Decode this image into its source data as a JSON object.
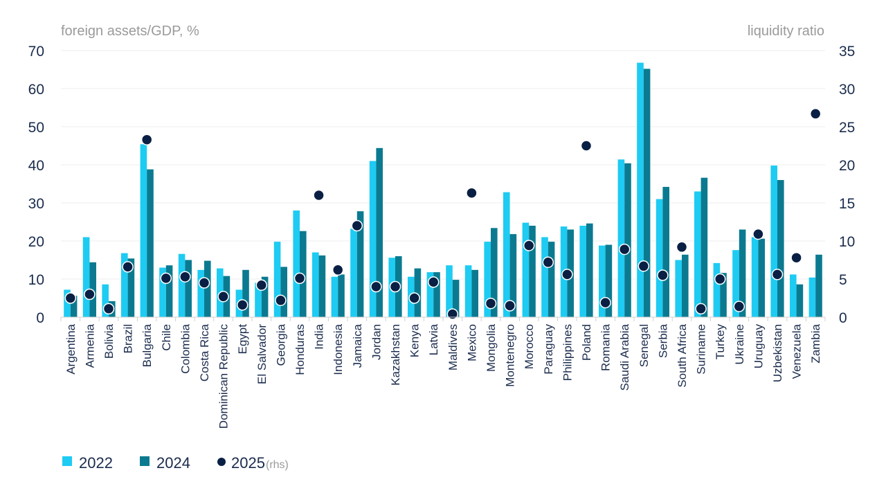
{
  "chart_data": {
    "type": "bar",
    "left_axis_title": "foreign assets/GDP, %",
    "right_axis_title": "liquidity ratio",
    "ylim_left": [
      0,
      70
    ],
    "ylim_right": [
      0,
      35
    ],
    "yticks_left": [
      "0",
      "10",
      "20",
      "30",
      "40",
      "50",
      "60",
      "70"
    ],
    "yticks_right": [
      "0",
      "5",
      "10",
      "15",
      "20",
      "25",
      "30",
      "35"
    ],
    "categories": [
      "Argentina",
      "Armenia",
      "Bolivia",
      "Brazil",
      "Bulgaria",
      "Chile",
      "Colombia",
      "Costa Rica",
      "Dominican Republic",
      "Egypt",
      "El Salvador",
      "Georgia",
      "Honduras",
      "India",
      "Indonesia",
      "Jamaica",
      "Jordan",
      "Kazakhstan",
      "Kenya",
      "Latvia",
      "Maldives",
      "Mexico",
      "Mongolia",
      "Montenegro",
      "Morocco",
      "Paraguay",
      "Philippines",
      "Poland",
      "Romania",
      "Saudi Arabia",
      "Senegal",
      "Serbia",
      "South Africa",
      "Suriname",
      "Turkey",
      "Ukraine",
      "Uruguay",
      "Uzbekistan",
      "Venezuela",
      "Zambia"
    ],
    "series": [
      {
        "name": "2022",
        "type": "bar",
        "axis": "left",
        "color": "#1ecbf2",
        "values": [
          7.2,
          21,
          8.6,
          16.8,
          45.4,
          13,
          16.6,
          12.4,
          12.8,
          7.2,
          9,
          19.8,
          28,
          17,
          10.6,
          23.2,
          41,
          15.6,
          10.6,
          11.8,
          13.6,
          13.6,
          19.8,
          32.8,
          24.8,
          21,
          23.8,
          24,
          18.8,
          41.4,
          66.8,
          31,
          15,
          33,
          14.2,
          17.6,
          21,
          39.8,
          11.2,
          10.4
        ]
      },
      {
        "name": "2024",
        "type": "bar",
        "axis": "left",
        "color": "#0b7a90",
        "values": [
          5.6,
          14.4,
          4.2,
          15.4,
          38.8,
          13.6,
          15,
          14.8,
          10.8,
          12.4,
          10.6,
          13.2,
          22.6,
          16.2,
          11.2,
          27.8,
          44.4,
          16,
          12.8,
          11.8,
          9.8,
          12.4,
          23.4,
          21.8,
          24,
          19.8,
          23,
          24.6,
          19,
          40.4,
          65.2,
          34.2,
          16.4,
          36.6,
          11.6,
          23,
          20.6,
          36,
          8.6,
          16.4
        ]
      },
      {
        "name": "2025",
        "note": "(rhs)",
        "type": "scatter",
        "axis": "right",
        "color": "#0a1f44",
        "values": [
          2.5,
          3,
          1.1,
          6.6,
          23.3,
          5.1,
          5.3,
          4.5,
          2.7,
          1.6,
          4.2,
          2.2,
          5.1,
          16,
          6.2,
          12,
          4,
          4,
          2.5,
          4.6,
          0.4,
          16.3,
          1.8,
          1.5,
          9.4,
          7.2,
          5.6,
          22.5,
          1.9,
          8.9,
          6.7,
          5.5,
          9.2,
          1.1,
          5,
          1.4,
          10.9,
          5.6,
          7.8,
          26.7
        ]
      }
    ],
    "legend_position": "bottom-left",
    "grid": true
  }
}
